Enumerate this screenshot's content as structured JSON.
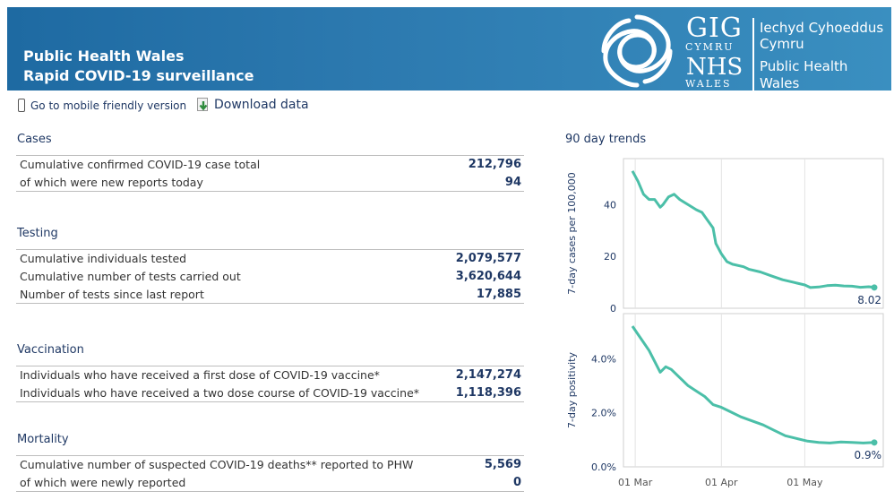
{
  "header": {
    "title_line1": "Public Health Wales",
    "title_line2": "Rapid COVID-19 surveillance",
    "logo": {
      "gig": "GIG",
      "cymru": "CYMRU",
      "nhs": "NHS",
      "wales": "WALES",
      "welsh_name_line1": "Iechyd Cyhoeddus",
      "welsh_name_line2": "Cymru",
      "english_name_line1": "Public Health",
      "english_name_line2": "Wales"
    }
  },
  "toolbar": {
    "mobile_label": "Go to mobile friendly version",
    "mobile_icon": "phone-icon",
    "download_label": "Download data",
    "download_icon": "download-icon"
  },
  "sections": {
    "cases": {
      "title": "Cases",
      "rows": [
        {
          "label": "Cumulative confirmed COVID-19 case total",
          "value": "212,796"
        },
        {
          "label": "of which were new reports today",
          "value": "94"
        }
      ]
    },
    "testing": {
      "title": "Testing",
      "rows": [
        {
          "label": "Cumulative individuals tested",
          "value": "2,079,577"
        },
        {
          "label": "Cumulative number of tests carried out",
          "value": "3,620,644"
        },
        {
          "label": "Number of tests since last report",
          "value": "17,885"
        }
      ]
    },
    "vaccination": {
      "title": "Vaccination",
      "rows": [
        {
          "label": "Individuals who have received a first dose of COVID-19 vaccine*",
          "value": "2,147,274"
        },
        {
          "label": "Individuals who have received a two dose course of COVID-19 vaccine*",
          "value": "1,118,396"
        }
      ]
    },
    "mortality": {
      "title": "Mortality",
      "rows": [
        {
          "label": "Cumulative number of suspected COVID-19 deaths** reported to PHW",
          "value": "5,569"
        },
        {
          "label": "of which were newly reported",
          "value": "0"
        }
      ]
    }
  },
  "trends_title": "90 day trends",
  "colors": {
    "banner": "#2c79af",
    "line": "#4bbfa8",
    "heading": "#1f3864"
  },
  "chart_data": [
    {
      "type": "line",
      "ylabel": "7-day cases per 100,000",
      "ylim": [
        0,
        55
      ],
      "yticks": [
        0,
        20,
        40
      ],
      "ytick_labels": [
        "0",
        "20",
        "40"
      ],
      "x_start": "2021-02-28",
      "x_end": "2021-05-26",
      "series": [
        {
          "values": [
            [
              "2021-02-28",
              53
            ],
            [
              "2021-03-02",
              49
            ],
            [
              "2021-03-04",
              44
            ],
            [
              "2021-03-06",
              42
            ],
            [
              "2021-03-08",
              42
            ],
            [
              "2021-03-10",
              39
            ],
            [
              "2021-03-11",
              40
            ],
            [
              "2021-03-13",
              43
            ],
            [
              "2021-03-15",
              44
            ],
            [
              "2021-03-17",
              42
            ],
            [
              "2021-03-20",
              40
            ],
            [
              "2021-03-23",
              38
            ],
            [
              "2021-03-25",
              37
            ],
            [
              "2021-03-27",
              34
            ],
            [
              "2021-03-29",
              31
            ],
            [
              "2021-03-30",
              25
            ],
            [
              "2021-04-01",
              21
            ],
            [
              "2021-04-03",
              18
            ],
            [
              "2021-04-05",
              17
            ],
            [
              "2021-04-09",
              16
            ],
            [
              "2021-04-11",
              15
            ],
            [
              "2021-04-15",
              14
            ],
            [
              "2021-04-19",
              12.5
            ],
            [
              "2021-04-23",
              11
            ],
            [
              "2021-04-27",
              10
            ],
            [
              "2021-05-01",
              9
            ],
            [
              "2021-05-03",
              8
            ],
            [
              "2021-05-06",
              8.2
            ],
            [
              "2021-05-09",
              8.7
            ],
            [
              "2021-05-12",
              8.9
            ],
            [
              "2021-05-15",
              8.6
            ],
            [
              "2021-05-18",
              8.5
            ],
            [
              "2021-05-21",
              8.1
            ],
            [
              "2021-05-24",
              8.3
            ],
            [
              "2021-05-26",
              8.02
            ]
          ]
        }
      ],
      "end_label": "8.02"
    },
    {
      "type": "line",
      "ylabel": "7-day positivity",
      "ylim": [
        0,
        5.4
      ],
      "yticks": [
        0,
        2,
        4
      ],
      "ytick_labels": [
        "0.0%",
        "2.0%",
        "4.0%"
      ],
      "x_start": "2021-02-28",
      "x_end": "2021-05-26",
      "xtick_labels": [
        [
          "2021-03-01",
          "01 Mar"
        ],
        [
          "2021-04-01",
          "01 Apr"
        ],
        [
          "2021-05-01",
          "01 May"
        ]
      ],
      "series": [
        {
          "values": [
            [
              "2021-02-28",
              5.2
            ],
            [
              "2021-03-02",
              4.9
            ],
            [
              "2021-03-04",
              4.6
            ],
            [
              "2021-03-06",
              4.3
            ],
            [
              "2021-03-08",
              3.9
            ],
            [
              "2021-03-10",
              3.5
            ],
            [
              "2021-03-12",
              3.7
            ],
            [
              "2021-03-14",
              3.6
            ],
            [
              "2021-03-17",
              3.3
            ],
            [
              "2021-03-20",
              3.0
            ],
            [
              "2021-03-23",
              2.8
            ],
            [
              "2021-03-26",
              2.6
            ],
            [
              "2021-03-29",
              2.3
            ],
            [
              "2021-04-01",
              2.2
            ],
            [
              "2021-04-04",
              2.05
            ],
            [
              "2021-04-08",
              1.85
            ],
            [
              "2021-04-12",
              1.7
            ],
            [
              "2021-04-16",
              1.55
            ],
            [
              "2021-04-20",
              1.35
            ],
            [
              "2021-04-24",
              1.15
            ],
            [
              "2021-04-28",
              1.05
            ],
            [
              "2021-05-02",
              0.95
            ],
            [
              "2021-05-06",
              0.9
            ],
            [
              "2021-05-10",
              0.88
            ],
            [
              "2021-05-14",
              0.92
            ],
            [
              "2021-05-18",
              0.9
            ],
            [
              "2021-05-22",
              0.88
            ],
            [
              "2021-05-26",
              0.9
            ]
          ]
        }
      ],
      "end_label": "0.9%"
    }
  ]
}
